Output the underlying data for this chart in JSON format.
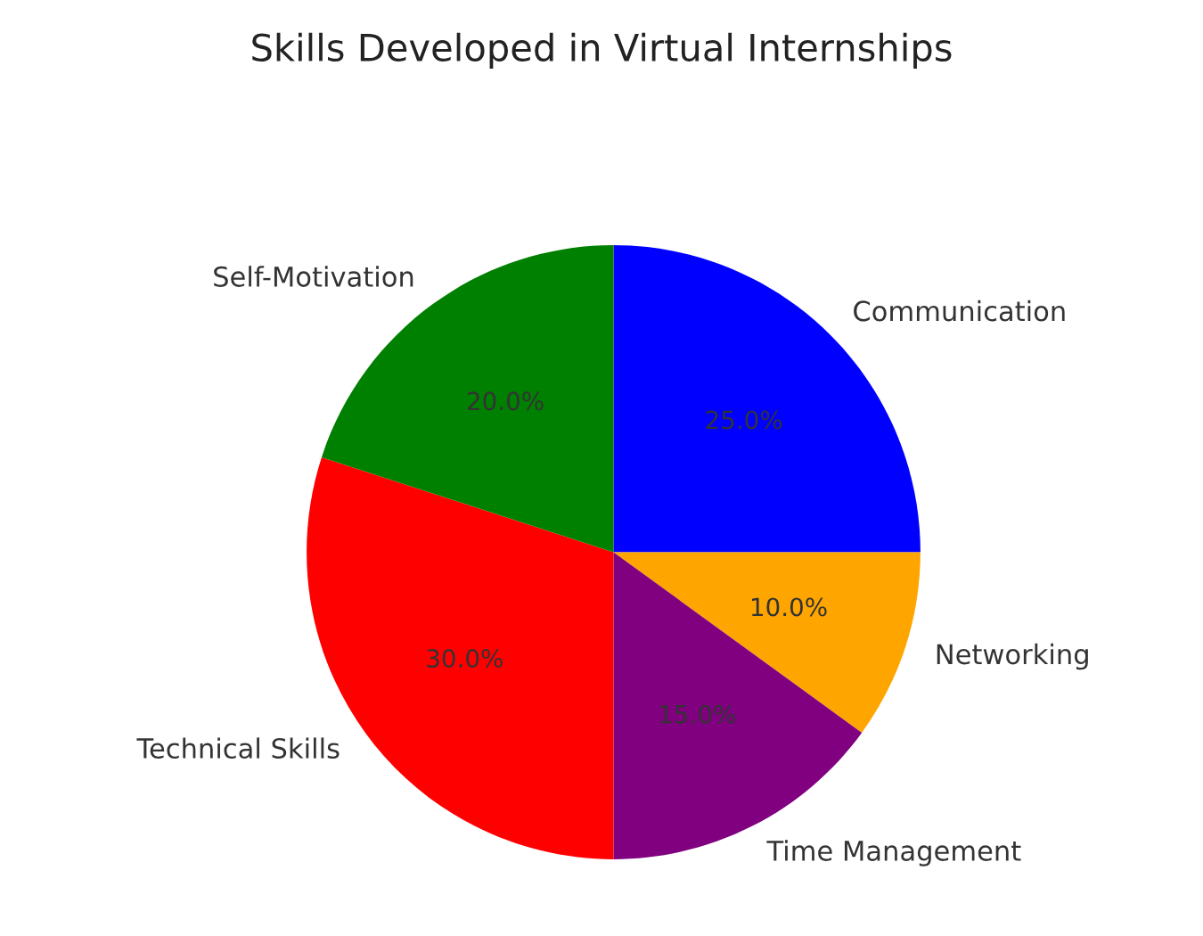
{
  "chart_data": {
    "type": "pie",
    "title": "Skills Developed in Virtual Internships",
    "categories": [
      "Communication",
      "Networking",
      "Time Management",
      "Technical Skills",
      "Self-Motivation"
    ],
    "values": [
      25,
      10,
      15,
      30,
      20
    ],
    "colors": [
      "#0000ff",
      "#ffa500",
      "#800080",
      "#ff0000",
      "#008000"
    ],
    "value_labels": [
      "25.0%",
      "10.0%",
      "15.0%",
      "30.0%",
      "20.0%"
    ]
  }
}
